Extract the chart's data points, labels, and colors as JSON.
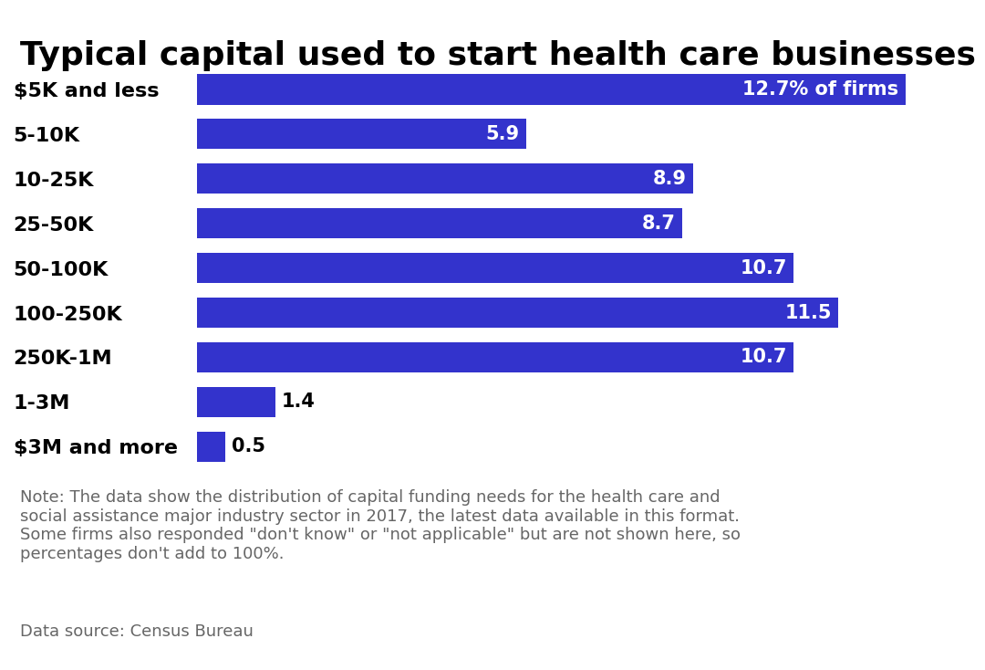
{
  "title": "Typical capital used to start health care businesses",
  "categories": [
    "$5K and less",
    "5-10K",
    "10-25K",
    "25-50K",
    "50-100K",
    "100-250K",
    "250K-1M",
    "1-3M",
    "$3M and more"
  ],
  "values": [
    12.7,
    5.9,
    8.9,
    8.7,
    10.7,
    11.5,
    10.7,
    1.4,
    0.5
  ],
  "bar_color": "#3333cc",
  "label_color_inside": "#ffffff",
  "label_color_outside": "#000000",
  "title_fontsize": 26,
  "label_fontsize": 15,
  "category_fontsize": 16,
  "note_fontsize": 13,
  "source_fontsize": 13,
  "background_color": "#ffffff",
  "xlim": [
    0,
    13.6
  ],
  "note_text": "Note: The data show the distribution of capital funding needs for the health care and\nsocial assistance major industry sector in 2017, the latest data available in this format.\nSome firms also responded \"don't know\" or \"not applicable\" but are not shown here, so\npercentages don't add to 100%.",
  "source_text": "Data source: Census Bureau",
  "first_bar_label": "12.7% of firms",
  "threshold_inside": 2.0,
  "note_color": "#666666",
  "source_color": "#666666"
}
